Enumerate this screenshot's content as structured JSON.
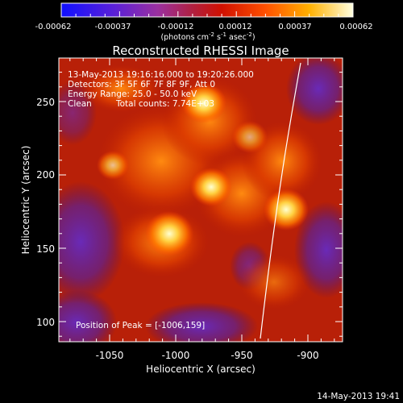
{
  "title": "Reconstructed RHESSI Image",
  "colorbar": {
    "ticks": [
      "-0.00062",
      "-0.00037",
      "-0.00012",
      "0.00012",
      "0.00037",
      "0.00062"
    ],
    "unit_label": "(photons cm",
    "unit_sup1": "-2",
    "unit_mid": " s",
    "unit_sup2": "-1",
    "unit_mid2": " asec",
    "unit_sup3": "-2",
    "unit_end": ")"
  },
  "axes": {
    "xlabel": "Heliocentric X (arcsec)",
    "ylabel": "Heliocentric Y (arcsec)",
    "xticks": [
      "-1050",
      "-1000",
      "-950",
      "-900"
    ],
    "yticks": [
      "250",
      "200",
      "150",
      "100"
    ]
  },
  "annotations": {
    "time_range": "13-May-2013 19:16:16.000 to 19:20:26.000",
    "detectors": "Detectors: 3F 5F 6F 7F 8F 9F, Att 0",
    "energy": "Energy Range: 25.0 - 50.0 keV",
    "clean_label": "Clean",
    "total_counts": "Total counts: 7.74E+03",
    "peak": "Position of Peak = [-1006,159]"
  },
  "footer_timestamp": "14-May-2013 19:41",
  "colors": {
    "background": "#000000",
    "text": "#ffffff",
    "limb": "#ffffff"
  }
}
